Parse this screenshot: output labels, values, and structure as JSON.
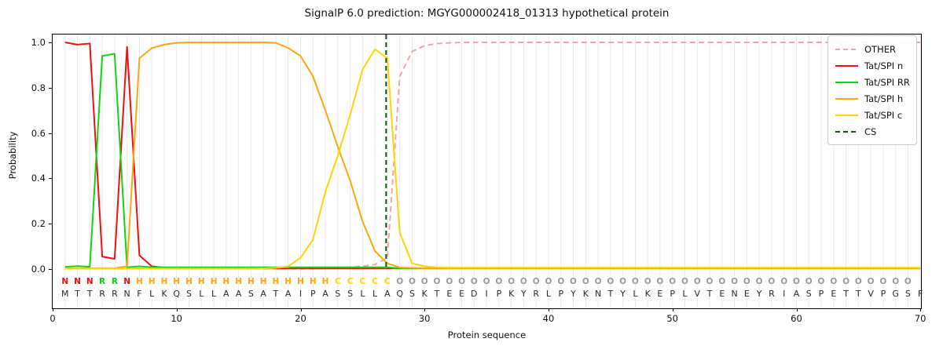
{
  "title": "SignalP 6.0 prediction: MGYG000002418_01313 hypothetical protein",
  "axes": {
    "xlabel": "Protein sequence",
    "ylabel": "Probability",
    "xticks": [
      0,
      10,
      20,
      30,
      40,
      50,
      60,
      70
    ],
    "yticks": [
      0.0,
      0.2,
      0.4,
      0.6,
      0.8,
      1.0
    ]
  },
  "colors": {
    "other": "#f5a3a6",
    "tat_spi_n": "#ec1010",
    "tat_spi_rr": "#11d411",
    "tat_spi_h": "#ffa50e",
    "tat_spi_c": "#fed402",
    "cs": "#0a5c0a",
    "region_O": "#999999",
    "residue_text": "#2b2b2b",
    "grid": "#e9e9e9"
  },
  "legend": {
    "items": [
      {
        "label": "OTHER",
        "color": "#f5a3a6",
        "dashed": true
      },
      {
        "label": "Tat/SPI n",
        "color": "#ec1010",
        "dashed": false
      },
      {
        "label": "Tat/SPI RR",
        "color": "#11d411",
        "dashed": false
      },
      {
        "label": "Tat/SPI h",
        "color": "#ffa50e",
        "dashed": false
      },
      {
        "label": "Tat/SPI c",
        "color": "#fed402",
        "dashed": false
      },
      {
        "label": "CS",
        "color": "#0a5c0a",
        "dashed": true
      }
    ]
  },
  "sequence": {
    "region_labels": "NNNRRNHHHHHHHHHHHHHHHHCCCCCOOOOOOOOOOOOOOOOOOOOOOOOOOOOOOOOOOOOOOOOOO",
    "residues": "MTTRRNFLKQSLLAASATAIPASSLLAQSKTEEDIPKYRLPYKNTYLKEPLVTENEYRIASPETTVPGSF",
    "region_colors": {
      "N": "#ec1010",
      "R": "#11d411",
      "H": "#ffa50e",
      "C": "#fed402",
      "O": "#999999"
    }
  },
  "chart_data": {
    "type": "line",
    "title": "SignalP 6.0 prediction: MGYG000002418_01313 hypothetical protein",
    "xlabel": "Protein sequence",
    "ylabel": "Probability",
    "xlim": [
      0,
      70.05
    ],
    "ylim": [
      -0.173,
      1.035
    ],
    "grid": "vertical line per residue, light gray",
    "legend_position": "upper right",
    "positions_note": "x values are residue positions 1..70",
    "cs_line": {
      "name": "CS",
      "x": 26.9,
      "style": "dashed",
      "color": "#0a5c0a"
    },
    "series": [
      {
        "name": "OTHER",
        "color": "#f5a3a6",
        "style": "dashed",
        "values": [
          0.002,
          0.002,
          0.002,
          0.002,
          0.002,
          0.002,
          0.002,
          0.002,
          0.002,
          0.002,
          0.002,
          0.002,
          0.002,
          0.002,
          0.002,
          0.002,
          0.002,
          0.002,
          0.002,
          0.002,
          0.002,
          0.003,
          0.005,
          0.008,
          0.012,
          0.02,
          0.05,
          0.85,
          0.96,
          0.985,
          0.995,
          0.998,
          1.0,
          1.0,
          1.0,
          1.0,
          1.0,
          1.0,
          1.0,
          1.0,
          1.0,
          1.0,
          1.0,
          1.0,
          1.0,
          1.0,
          1.0,
          1.0,
          1.0,
          1.0,
          1.0,
          1.0,
          1.0,
          1.0,
          1.0,
          1.0,
          1.0,
          1.0,
          1.0,
          1.0,
          1.0,
          1.0,
          1.0,
          1.0,
          1.0,
          1.0,
          1.0,
          1.0,
          1.0,
          1.0
        ]
      },
      {
        "name": "Tat/SPI n",
        "color": "#ec1010",
        "style": "solid",
        "values": [
          1.0,
          0.99,
          0.995,
          0.055,
          0.045,
          0.98,
          0.06,
          0.012,
          0.006,
          0.003,
          0.003,
          0.003,
          0.003,
          0.003,
          0.003,
          0.003,
          0.003,
          0.003,
          0.003,
          0.003,
          0.003,
          0.003,
          0.003,
          0.003,
          0.003,
          0.003,
          0.003,
          0.003,
          0.003,
          0.003,
          0.003,
          0.003,
          0.003,
          0.003,
          0.003,
          0.003,
          0.003,
          0.003,
          0.003,
          0.003,
          0.003,
          0.003,
          0.003,
          0.003,
          0.003,
          0.003,
          0.003,
          0.003,
          0.003,
          0.003,
          0.003,
          0.003,
          0.003,
          0.003,
          0.003,
          0.003,
          0.003,
          0.003,
          0.003,
          0.003,
          0.003,
          0.003,
          0.003,
          0.003,
          0.003,
          0.003,
          0.003,
          0.003,
          0.003,
          0.003
        ]
      },
      {
        "name": "Tat/SPI RR",
        "color": "#11d411",
        "style": "solid",
        "values": [
          0.01,
          0.013,
          0.01,
          0.94,
          0.95,
          0.008,
          0.012,
          0.008,
          0.008,
          0.008,
          0.008,
          0.008,
          0.008,
          0.008,
          0.008,
          0.008,
          0.008,
          0.008,
          0.008,
          0.008,
          0.008,
          0.008,
          0.008,
          0.008,
          0.008,
          0.008,
          0.008,
          0.003,
          0.003,
          0.003,
          0.003,
          0.003,
          0.003,
          0.003,
          0.003,
          0.003,
          0.003,
          0.003,
          0.003,
          0.003,
          0.003,
          0.003,
          0.003,
          0.003,
          0.003,
          0.003,
          0.003,
          0.003,
          0.003,
          0.003,
          0.003,
          0.003,
          0.003,
          0.003,
          0.003,
          0.003,
          0.003,
          0.003,
          0.003,
          0.003,
          0.003,
          0.003,
          0.003,
          0.003,
          0.003,
          0.003,
          0.003,
          0.003,
          0.003,
          0.003
        ]
      },
      {
        "name": "Tat/SPI h",
        "color": "#ffa50e",
        "style": "solid",
        "values": [
          0.003,
          0.003,
          0.003,
          0.004,
          0.004,
          0.012,
          0.93,
          0.975,
          0.99,
          0.998,
          1.0,
          1.0,
          1.0,
          1.0,
          1.0,
          1.0,
          1.0,
          0.998,
          0.975,
          0.94,
          0.85,
          0.7,
          0.54,
          0.39,
          0.21,
          0.08,
          0.025,
          0.007,
          0.005,
          0.004,
          0.004,
          0.004,
          0.004,
          0.004,
          0.004,
          0.004,
          0.004,
          0.004,
          0.004,
          0.004,
          0.004,
          0.004,
          0.004,
          0.004,
          0.004,
          0.004,
          0.004,
          0.004,
          0.004,
          0.004,
          0.004,
          0.004,
          0.004,
          0.004,
          0.004,
          0.004,
          0.004,
          0.004,
          0.004,
          0.004,
          0.004,
          0.004,
          0.004,
          0.004,
          0.004,
          0.004,
          0.004,
          0.004,
          0.004,
          0.004
        ]
      },
      {
        "name": "Tat/SPI c",
        "color": "#fed402",
        "style": "solid",
        "values": [
          0.002,
          0.002,
          0.002,
          0.002,
          0.002,
          0.002,
          0.002,
          0.002,
          0.002,
          0.002,
          0.002,
          0.002,
          0.002,
          0.002,
          0.002,
          0.002,
          0.003,
          0.005,
          0.012,
          0.05,
          0.13,
          0.34,
          0.5,
          0.68,
          0.88,
          0.97,
          0.93,
          0.16,
          0.025,
          0.012,
          0.008,
          0.006,
          0.006,
          0.006,
          0.006,
          0.006,
          0.006,
          0.006,
          0.006,
          0.006,
          0.006,
          0.006,
          0.006,
          0.006,
          0.006,
          0.006,
          0.006,
          0.006,
          0.006,
          0.006,
          0.006,
          0.006,
          0.006,
          0.006,
          0.006,
          0.006,
          0.006,
          0.006,
          0.006,
          0.006,
          0.006,
          0.006,
          0.006,
          0.006,
          0.006,
          0.006,
          0.006,
          0.006,
          0.006,
          0.006
        ]
      }
    ]
  }
}
